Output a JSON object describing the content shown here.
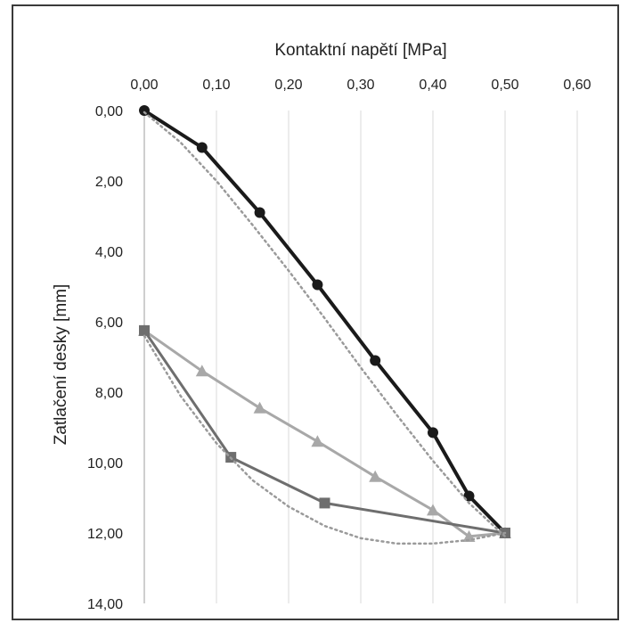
{
  "chart_data": {
    "type": "line",
    "xlabel": "Kontaktní napětí [MPa]",
    "ylabel": "Zatlačení desky [mm]",
    "xlim": [
      0,
      0.6
    ],
    "ylim": [
      0,
      14
    ],
    "y_inverted": true,
    "x_axis_position": "top",
    "grid": "vertical",
    "x_ticks": [
      "0,00",
      "0,10",
      "0,20",
      "0,30",
      "0,40",
      "0,50",
      "0,60"
    ],
    "y_ticks": [
      "0,00",
      "2,00",
      "4,00",
      "6,00",
      "8,00",
      "10,00",
      "12,00",
      "14,00"
    ],
    "colors": {
      "loading1": "#1a1a1a",
      "unloading": "#a8a8a8",
      "reloading": "#6e6e6e",
      "trend": "#9a9a9a",
      "grid": "#d9d9d9"
    },
    "series": [
      {
        "marker": "circle",
        "color_key": "loading1",
        "x": [
          0.0,
          0.08,
          0.16,
          0.24,
          0.32,
          0.4,
          0.45,
          0.5
        ],
        "y": [
          0.0,
          1.05,
          2.9,
          4.95,
          7.1,
          9.15,
          10.95,
          12.0
        ]
      },
      {
        "marker": "triangle",
        "color_key": "unloading",
        "x": [
          0.5,
          0.45,
          0.4,
          0.32,
          0.24,
          0.16,
          0.08,
          0.0
        ],
        "y": [
          12.0,
          12.1,
          11.35,
          10.4,
          9.4,
          8.45,
          7.4,
          6.25
        ]
      },
      {
        "marker": "square",
        "color_key": "reloading",
        "x": [
          0.0,
          0.12,
          0.25,
          0.5
        ],
        "y": [
          6.25,
          9.85,
          11.15,
          12.0
        ]
      },
      {
        "marker": "none",
        "style": "dotted",
        "color_key": "trend",
        "x": [
          0.0,
          0.05,
          0.1,
          0.15,
          0.2,
          0.25,
          0.3,
          0.35,
          0.4,
          0.45,
          0.5
        ],
        "y": [
          0.05,
          0.9,
          2.0,
          3.25,
          4.55,
          5.9,
          7.3,
          8.65,
          9.95,
          11.15,
          12.1
        ]
      },
      {
        "marker": "none",
        "style": "dotted",
        "color_key": "trend",
        "x": [
          0.0,
          0.05,
          0.1,
          0.15,
          0.2,
          0.25,
          0.3,
          0.35,
          0.4,
          0.45,
          0.5
        ],
        "y": [
          6.4,
          8.1,
          9.45,
          10.5,
          11.25,
          11.8,
          12.15,
          12.3,
          12.3,
          12.2,
          12.0
        ]
      }
    ]
  }
}
